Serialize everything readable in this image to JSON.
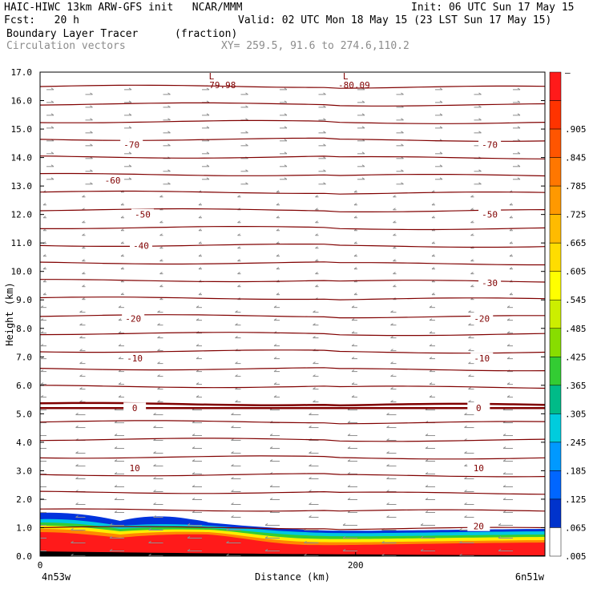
{
  "header": {
    "title_left": "HAIC-HIWC 13km ARW-GFS init   NCAR/MMM",
    "init": "Init: 06 UTC Sun 17 May 15",
    "fcst": "Fcst:   20 h",
    "valid": "Valid: 02 UTC Mon 18 May 15 (23 LST Sun 17 May 15)",
    "field1": "Boundary Layer Tracer",
    "field1_units": "(fraction)",
    "field2": "Circulation vectors",
    "xsec": "XY= 259.5, 91.6 to 274.6,110.2"
  },
  "chart_data": {
    "type": "contour cross-section",
    "xlabel": "Distance (km)",
    "ylabel": "Height (km)",
    "x_ticks": [
      "0",
      "200"
    ],
    "x_end_labels": {
      "left": "4n53w",
      "right": "6n51w"
    },
    "xlim": [
      0,
      320
    ],
    "ylim": [
      0,
      17
    ],
    "y_ticks": [
      "0.0",
      "1.0",
      "2.0",
      "3.0",
      "4.0",
      "5.0",
      "6.0",
      "7.0",
      "8.0",
      "9.0",
      "10.0",
      "11.0",
      "12.0",
      "13.0",
      "14.0",
      "15.0",
      "16.0",
      "17.0"
    ],
    "colorbar_labels": [
      "–",
      ".905",
      ".845",
      ".785",
      ".725",
      ".665",
      ".605",
      ".545",
      ".485",
      ".425",
      ".365",
      ".305",
      ".245",
      ".185",
      ".125",
      ".065",
      ".005"
    ],
    "colorbar_colors": [
      "#ff1a1a",
      "#ff3300",
      "#ff5500",
      "#ff7700",
      "#ff9900",
      "#ffbb00",
      "#ffdd00",
      "#ffff00",
      "#ccee00",
      "#88dd00",
      "#33cc33",
      "#00bb88",
      "#00ccdd",
      "#0099ff",
      "#0066ff",
      "#0033cc",
      "#ffffff"
    ],
    "contour_color": "#800000",
    "contour_labels": [
      {
        "text": "-70",
        "x": 58,
        "y": 14.45
      },
      {
        "text": "-70",
        "x": 285,
        "y": 14.45
      },
      {
        "text": "-60",
        "x": 46,
        "y": 13.2
      },
      {
        "text": "-50",
        "x": 65,
        "y": 12.0
      },
      {
        "text": "-50",
        "x": 285,
        "y": 12.0
      },
      {
        "text": "-40",
        "x": 64,
        "y": 10.9
      },
      {
        "text": "-30",
        "x": 285,
        "y": 9.6
      },
      {
        "text": "-20",
        "x": 59,
        "y": 8.35
      },
      {
        "text": "-20",
        "x": 280,
        "y": 8.35
      },
      {
        "text": "-10",
        "x": 60,
        "y": 6.95
      },
      {
        "text": "-10",
        "x": 280,
        "y": 6.95
      },
      {
        "text": "0",
        "x": 60,
        "y": 5.2
      },
      {
        "text": "0",
        "x": 278,
        "y": 5.2
      },
      {
        "text": "10",
        "x": 60,
        "y": 3.1
      },
      {
        "text": "10",
        "x": 278,
        "y": 3.1
      },
      {
        "text": "20",
        "x": 278,
        "y": 1.05
      }
    ],
    "low_labels": [
      {
        "text": "L",
        "value": "-79.98",
        "x": 110,
        "y": 16.75
      },
      {
        "text": "L",
        "value": "-80.09",
        "x": 195,
        "y": 16.75
      }
    ]
  }
}
